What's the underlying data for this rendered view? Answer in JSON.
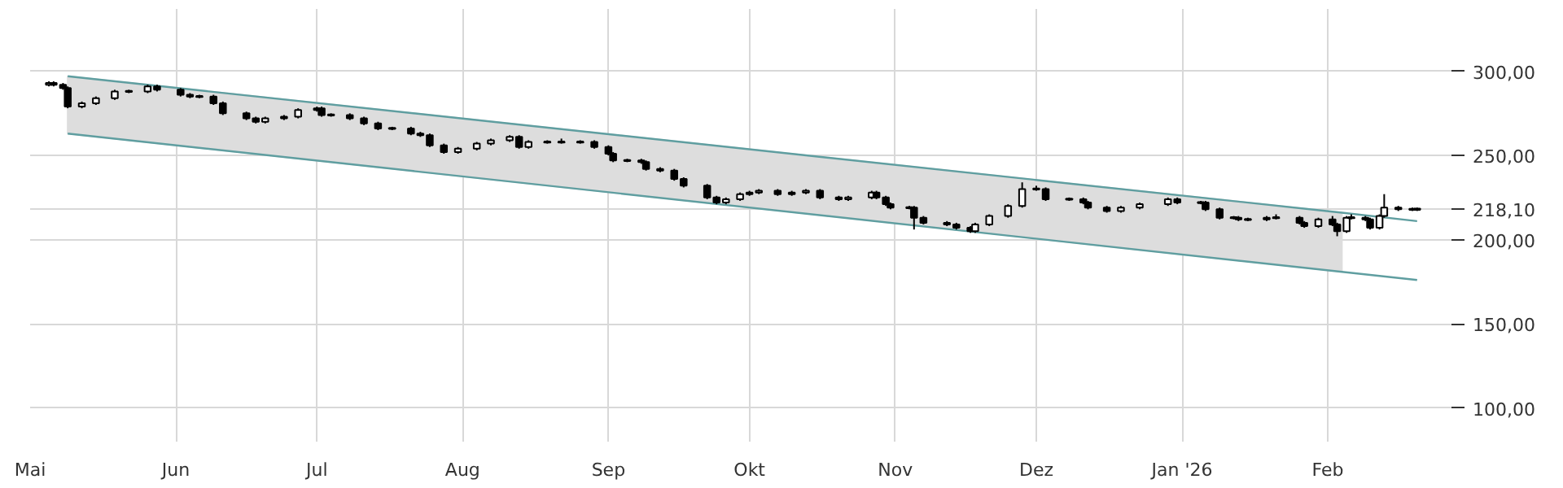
{
  "chart_data": {
    "type": "candlestick",
    "color": "#000000",
    "x": [
      "2025-05-05",
      "2025-05-06",
      "2025-05-08",
      "2025-05-09",
      "2025-05-12",
      "2025-05-15",
      "2025-05-19",
      "2025-05-22",
      "2025-05-26",
      "2025-05-28",
      "2025-06-02",
      "2025-06-04",
      "2025-06-06",
      "2025-06-09",
      "2025-06-11",
      "2025-06-16",
      "2025-06-18",
      "2025-06-20",
      "2025-06-24",
      "2025-06-27",
      "2025-07-01",
      "2025-07-02",
      "2025-07-04",
      "2025-07-08",
      "2025-07-11",
      "2025-07-14",
      "2025-07-17",
      "2025-07-21",
      "2025-07-23",
      "2025-07-25",
      "2025-07-28",
      "2025-07-31",
      "2025-08-04",
      "2025-08-07",
      "2025-08-11",
      "2025-08-13",
      "2025-08-15",
      "2025-08-19",
      "2025-08-22",
      "2025-08-26",
      "2025-08-29",
      "2025-09-01",
      "2025-09-02",
      "2025-09-05",
      "2025-09-08",
      "2025-09-09",
      "2025-09-12",
      "2025-09-15",
      "2025-09-17",
      "2025-09-22",
      "2025-09-24",
      "2025-09-26",
      "2025-09-29",
      "2025-10-01",
      "2025-10-03",
      "2025-10-07",
      "2025-10-10",
      "2025-10-13",
      "2025-10-16",
      "2025-10-20",
      "2025-10-22",
      "2025-10-27",
      "2025-10-28",
      "2025-10-30",
      "2025-10-31",
      "2025-11-04",
      "2025-11-05",
      "2025-11-07",
      "2025-11-12",
      "2025-11-14",
      "2025-11-17",
      "2025-11-18",
      "2025-11-21",
      "2025-11-25",
      "2025-11-28",
      "2025-12-01",
      "2025-12-03",
      "2025-12-08",
      "2025-12-11",
      "2025-12-12",
      "2025-12-16",
      "2025-12-19",
      "2025-12-23",
      "2025-12-29",
      "2025-12-31",
      "2026-01-05",
      "2026-01-06",
      "2026-01-09",
      "2026-01-12",
      "2026-01-13",
      "2026-01-15",
      "2026-01-19",
      "2026-01-21",
      "2026-01-26",
      "2026-01-27",
      "2026-01-30",
      "2026-02-02",
      "2026-02-03",
      "2026-02-05",
      "2026-02-06",
      "2026-02-09",
      "2026-02-10",
      "2026-02-12",
      "2026-02-13",
      "2026-02-16",
      "2026-02-19",
      "2026-02-20"
    ],
    "ohlc": [
      [
        292,
        294,
        291,
        293
      ],
      [
        293,
        294,
        291,
        292
      ],
      [
        292,
        293,
        289,
        290
      ],
      [
        290,
        291,
        278,
        279
      ],
      [
        279,
        282,
        278,
        281
      ],
      [
        281,
        285,
        280,
        284
      ],
      [
        284,
        289,
        283,
        288
      ],
      [
        288,
        289,
        287,
        288
      ],
      [
        288,
        292,
        287,
        291
      ],
      [
        291,
        292,
        288,
        289
      ],
      [
        289,
        290,
        285,
        286
      ],
      [
        286,
        287,
        284,
        285
      ],
      [
        285,
        286,
        284,
        285
      ],
      [
        285,
        286,
        280,
        281
      ],
      [
        281,
        282,
        274,
        275
      ],
      [
        275,
        276,
        271,
        272
      ],
      [
        272,
        273,
        269,
        270
      ],
      [
        270,
        273,
        269,
        272
      ],
      [
        272,
        274,
        271,
        273
      ],
      [
        273,
        278,
        272,
        277
      ],
      [
        277,
        279,
        276,
        278
      ],
      [
        278,
        279,
        273,
        274
      ],
      [
        274,
        275,
        273,
        274
      ],
      [
        274,
        275,
        271,
        272
      ],
      [
        272,
        273,
        268,
        269
      ],
      [
        269,
        270,
        265,
        266
      ],
      [
        266,
        267,
        265,
        266
      ],
      [
        266,
        267,
        262,
        263
      ],
      [
        263,
        264,
        261,
        262
      ],
      [
        262,
        263,
        255,
        256
      ],
      [
        256,
        257,
        251,
        252
      ],
      [
        252,
        255,
        251,
        254
      ],
      [
        254,
        258,
        253,
        257
      ],
      [
        257,
        260,
        256,
        259
      ],
      [
        259,
        262,
        258,
        261
      ],
      [
        261,
        262,
        254,
        255
      ],
      [
        255,
        259,
        254,
        258
      ],
      [
        258,
        259,
        257,
        258
      ],
      [
        258,
        260,
        257,
        258
      ],
      [
        258,
        259,
        257,
        258
      ],
      [
        258,
        259,
        254,
        255
      ],
      [
        255,
        256,
        250,
        251
      ],
      [
        251,
        252,
        246,
        247
      ],
      [
        247,
        248,
        246,
        247
      ],
      [
        247,
        248,
        245,
        246
      ],
      [
        246,
        247,
        241,
        242
      ],
      [
        242,
        243,
        240,
        241
      ],
      [
        241,
        242,
        235,
        236
      ],
      [
        236,
        237,
        231,
        232
      ],
      [
        232,
        233,
        224,
        225
      ],
      [
        225,
        226,
        221,
        222
      ],
      [
        222,
        225,
        221,
        224
      ],
      [
        224,
        228,
        223,
        227
      ],
      [
        227,
        229,
        226,
        228
      ],
      [
        228,
        230,
        227,
        229
      ],
      [
        229,
        230,
        226,
        227
      ],
      [
        227,
        229,
        226,
        228
      ],
      [
        228,
        230,
        227,
        229
      ],
      [
        229,
        230,
        224,
        225
      ],
      [
        225,
        226,
        223,
        224
      ],
      [
        224,
        226,
        223,
        225
      ],
      [
        225,
        229,
        224,
        228
      ],
      [
        228,
        229,
        224,
        225
      ],
      [
        225,
        226,
        220,
        221
      ],
      [
        221,
        222,
        218,
        219
      ],
      [
        219,
        220,
        218,
        219
      ],
      [
        219,
        220,
        206,
        213
      ],
      [
        213,
        214,
        209,
        210
      ],
      [
        210,
        211,
        208,
        209
      ],
      [
        209,
        210,
        206,
        207
      ],
      [
        207,
        208,
        204,
        205
      ],
      [
        205,
        210,
        204,
        209
      ],
      [
        209,
        215,
        208,
        214
      ],
      [
        214,
        221,
        213,
        220
      ],
      [
        220,
        234,
        219,
        230
      ],
      [
        230,
        232,
        229,
        230
      ],
      [
        230,
        231,
        223,
        224
      ],
      [
        224,
        225,
        223,
        224
      ],
      [
        224,
        225,
        221,
        222
      ],
      [
        222,
        223,
        218,
        219
      ],
      [
        219,
        220,
        216,
        217
      ],
      [
        217,
        220,
        216,
        219
      ],
      [
        219,
        222,
        218,
        221
      ],
      [
        221,
        225,
        220,
        224
      ],
      [
        224,
        225,
        221,
        222
      ],
      [
        222,
        223,
        221,
        222
      ],
      [
        222,
        223,
        217,
        218
      ],
      [
        218,
        219,
        212,
        213
      ],
      [
        213,
        214,
        212,
        213
      ],
      [
        213,
        214,
        211,
        212
      ],
      [
        212,
        213,
        211,
        212
      ],
      [
        212,
        214,
        211,
        213
      ],
      [
        213,
        215,
        212,
        213
      ],
      [
        213,
        214,
        209,
        210
      ],
      [
        210,
        211,
        207,
        208
      ],
      [
        208,
        213,
        207,
        212
      ],
      [
        212,
        214,
        208,
        209
      ],
      [
        209,
        210,
        202,
        205
      ],
      [
        205,
        214,
        204,
        213
      ],
      [
        213,
        215,
        212,
        213
      ],
      [
        213,
        214,
        211,
        212
      ],
      [
        212,
        213,
        206,
        207
      ],
      [
        207,
        215,
        206,
        214
      ],
      [
        214,
        227,
        213,
        219
      ],
      [
        219,
        220,
        217,
        218
      ],
      [
        218,
        219,
        217,
        218
      ],
      [
        218,
        219,
        217,
        218.1
      ]
    ],
    "series": [
      {
        "type": "line",
        "color": "#5f9ea0",
        "x": [
          "2025-05-09",
          "2026-02-04",
          "2026-02-20"
        ],
        "values": [
          297,
          216,
          211
        ],
        "lower": [
          263,
          181,
          null
        ],
        "upper": [
          297,
          216,
          null
        ]
      },
      {
        "type": "line",
        "color": "#5f9ea0",
        "x": [
          "2025-05-09",
          "2026-02-20"
        ],
        "values": [
          263,
          176
        ]
      }
    ],
    "xlim": [
      "2025-05-01",
      "2026-02-28"
    ],
    "ylim": [
      80,
      337
    ],
    "xticks": [
      {
        "value": "2025-05-01",
        "label": "Mai"
      },
      {
        "value": "2025-06-01",
        "label": "Jun"
      },
      {
        "value": "2025-07-01",
        "label": "Jul"
      },
      {
        "value": "2025-08-01",
        "label": "Aug"
      },
      {
        "value": "2025-09-01",
        "label": "Sep"
      },
      {
        "value": "2025-10-01",
        "label": "Okt"
      },
      {
        "value": "2025-11-01",
        "label": "Nov"
      },
      {
        "value": "2025-12-01",
        "label": "Dez"
      },
      {
        "value": "2026-01-01",
        "label": "Jan '26"
      },
      {
        "value": "2026-02-01",
        "label": "Feb"
      }
    ],
    "yticks": [
      {
        "value": 100,
        "label": "100,00"
      },
      {
        "value": 150,
        "label": "150,00"
      },
      {
        "value": 200,
        "label": "200,00"
      },
      {
        "value": 218.1,
        "label": "218,10"
      },
      {
        "value": 250,
        "label": "250,00"
      },
      {
        "value": 300,
        "label": "300,00"
      }
    ],
    "grid": true
  }
}
